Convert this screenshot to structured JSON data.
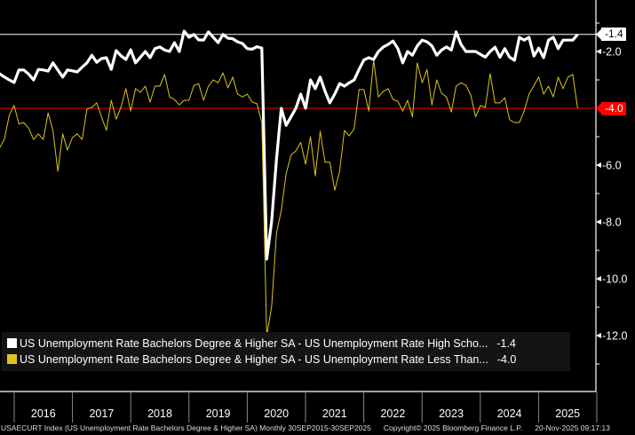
{
  "chart_data": {
    "type": "line",
    "title": "",
    "xlabel": "",
    "ylabel": "",
    "x_start": "2015-09",
    "x_end": "2025-09",
    "frequency": "monthly",
    "ylim": [
      -14.0,
      -0.2
    ],
    "y_ticks": [
      "-2.0",
      "-4.0",
      "-6.0",
      "-8.0",
      "-10.0",
      "-12.0"
    ],
    "y_tick_values": [
      -2,
      -4,
      -6,
      -8,
      -10,
      -12
    ],
    "x_tick_labels": [
      "2016",
      "2017",
      "2018",
      "2019",
      "2020",
      "2021",
      "2022",
      "2023",
      "2024",
      "2025"
    ],
    "grid": false,
    "legend_placement": "bottom-left",
    "series": [
      {
        "name": "US Unemployment Rate Bachelors Degree & Higher SA - US Unemployment Rate High Scho...",
        "last_value": "-1.4",
        "color": "#ffffff",
        "values": [
          -2.7,
          -2.78,
          -2.9,
          -3.0,
          -3.09,
          -2.65,
          -2.65,
          -2.8,
          -3.0,
          -2.63,
          -2.65,
          -2.69,
          -2.4,
          -2.65,
          -2.9,
          -2.65,
          -2.68,
          -2.72,
          -2.55,
          -2.4,
          -2.13,
          -2.38,
          -2.25,
          -2.22,
          -2.63,
          -1.97,
          -2.15,
          -2.28,
          -1.94,
          -2.4,
          -2.2,
          -2.0,
          -2.22,
          -1.9,
          -1.84,
          -1.95,
          -2.0,
          -1.69,
          -2.0,
          -1.28,
          -1.5,
          -1.4,
          -1.59,
          -1.6,
          -1.31,
          -1.5,
          -1.69,
          -1.4,
          -1.53,
          -1.55,
          -1.66,
          -1.72,
          -1.9,
          -1.92,
          -1.83,
          -1.88,
          -9.31,
          -8.0,
          -5.8,
          -4.0,
          -4.6,
          -4.3,
          -4.0,
          -3.5,
          -4.0,
          -3.0,
          -3.31,
          -2.9,
          -3.4,
          -3.81,
          -3.5,
          -3.13,
          -3.22,
          -3.1,
          -3.0,
          -2.63,
          -2.3,
          -2.22,
          -2.28,
          -2.0,
          -1.84,
          -1.75,
          -1.63,
          -1.9,
          -2.4,
          -2.0,
          -2.13,
          -1.8,
          -1.6,
          -1.66,
          -1.8,
          -2.13,
          -1.95,
          -1.84,
          -1.95,
          -1.31,
          -1.75,
          -2.0,
          -2.0,
          -2.0,
          -2.1,
          -2.2,
          -2.0,
          -1.85,
          -2.2,
          -1.9,
          -2.2,
          -2.31,
          -1.5,
          -1.6,
          -1.5,
          -2.16,
          -1.88,
          -2.22,
          -1.6,
          -1.5,
          -1.9,
          -1.6,
          -1.6,
          -1.6,
          -1.4
        ]
      },
      {
        "name": "US Unemployment Rate Bachelors Degree & Higher SA - US Unemployment Rate Less Than...",
        "last_value": "-4.0",
        "color": "#e0c419",
        "values": [
          -5.4,
          -5.4,
          -5.09,
          -4.25,
          -3.9,
          -4.55,
          -4.5,
          -4.7,
          -5.1,
          -4.9,
          -5.1,
          -4.16,
          -4.78,
          -6.22,
          -4.9,
          -5.47,
          -5.03,
          -4.9,
          -5.1,
          -4.03,
          -3.97,
          -3.81,
          -4.3,
          -4.78,
          -3.72,
          -4.38,
          -3.97,
          -3.31,
          -4.1,
          -3.31,
          -3.44,
          -3.22,
          -3.78,
          -3.22,
          -3.22,
          -2.81,
          -3.6,
          -3.69,
          -3.88,
          -3.72,
          -3.72,
          -3.2,
          -3.13,
          -3.72,
          -3.22,
          -3.0,
          -3.1,
          -2.75,
          -3.28,
          -2.9,
          -3.5,
          -3.6,
          -3.5,
          -3.78,
          -3.84,
          -4.5,
          -12.0,
          -11.0,
          -8.4,
          -7.6,
          -6.3,
          -5.65,
          -5.5,
          -5.2,
          -5.97,
          -5.0,
          -6.38,
          -4.81,
          -5.9,
          -5.9,
          -6.88,
          -6.22,
          -4.78,
          -4.97,
          -4.72,
          -3.34,
          -3.34,
          -4.1,
          -2.31,
          -3.6,
          -3.4,
          -3.31,
          -3.69,
          -3.75,
          -4.1,
          -3.72,
          -4.3,
          -2.4,
          -3.1,
          -2.63,
          -3.88,
          -3.0,
          -3.47,
          -3.6,
          -4.13,
          -3.22,
          -3.1,
          -3.19,
          -3.53,
          -4.3,
          -3.9,
          -3.97,
          -2.78,
          -3.81,
          -3.81,
          -3.63,
          -4.4,
          -4.5,
          -4.5,
          -4.1,
          -3.5,
          -3.2,
          -2.9,
          -3.5,
          -3.22,
          -3.6,
          -2.9,
          -3.31,
          -2.9,
          -2.81,
          -4.0
        ]
      }
    ],
    "reference_lines": [
      {
        "value": -1.4,
        "label": "-1.4",
        "color": "#ffffff"
      },
      {
        "value": -4.0,
        "label": "-4.0",
        "color": "#ff0000"
      }
    ]
  },
  "footer": {
    "description": "USAECURT Index (US Unemployment Rate Bachelors Degree & Higher SA) Monthly 30SEP2015-30SEP2025",
    "copyright": "Copyright© 2025 Bloomberg Finance L.P.",
    "timestamp": "20-Nov-2025 09:17:13"
  }
}
